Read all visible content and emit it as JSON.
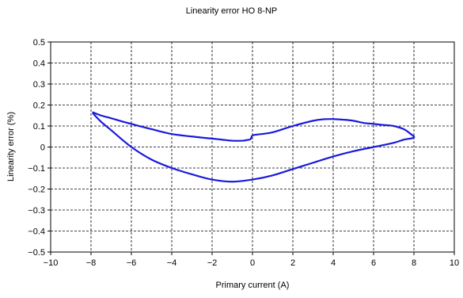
{
  "chart_data": {
    "type": "line",
    "title": "Linearity error HO 8-NP",
    "xlabel": "Primary current (A)",
    "ylabel": "Linearity error (%)",
    "xlim": [
      -10,
      10
    ],
    "ylim": [
      -0.5,
      0.5
    ],
    "xticks": [
      -10,
      -8,
      -6,
      -4,
      -2,
      0,
      2,
      4,
      6,
      8,
      10
    ],
    "yticks": [
      -0.5,
      -0.4,
      -0.3,
      -0.2,
      -0.1,
      0,
      0.1,
      0.2,
      0.3,
      0.4,
      0.5
    ],
    "xtick_labels": [
      "−10",
      "−8",
      "−6",
      "−4",
      "−2",
      "0",
      "2",
      "4",
      "6",
      "8",
      "10"
    ],
    "ytick_labels": [
      "−0.5",
      "−0.4",
      "−0.3",
      "−0.2",
      "−0.1",
      "0",
      "0.1",
      "0.2",
      "0.3",
      "0.4",
      "0.5"
    ],
    "grid": true,
    "grid_style": "dashed",
    "series": [
      {
        "color": "#1a1adc",
        "x": [
          -7.9,
          -7.5,
          -7.0,
          -6.5,
          -6.0,
          -5.0,
          -4.0,
          -3.0,
          -2.0,
          -1.5,
          -1.0,
          -0.5,
          -0.3,
          -0.1,
          0.0,
          0.3,
          1.0,
          2.0,
          3.0,
          3.5,
          4.0,
          4.5,
          5.0,
          5.5,
          6.0,
          6.5,
          7.0,
          7.5,
          7.8,
          8.0,
          7.5,
          7.0,
          6.0,
          5.0,
          4.0,
          3.0,
          2.0,
          1.0,
          0.0,
          -1.0,
          -2.0,
          -3.0,
          -4.0,
          -5.0,
          -6.0,
          -7.0,
          -7.5,
          -7.9
        ],
        "y": [
          0.165,
          0.15,
          0.137,
          0.123,
          0.11,
          0.085,
          0.062,
          0.05,
          0.04,
          0.035,
          0.03,
          0.03,
          0.033,
          0.037,
          0.055,
          0.06,
          0.07,
          0.1,
          0.125,
          0.132,
          0.133,
          0.13,
          0.125,
          0.115,
          0.11,
          0.105,
          0.1,
          0.085,
          0.065,
          0.045,
          0.035,
          0.02,
          0.0,
          -0.02,
          -0.045,
          -0.075,
          -0.105,
          -0.135,
          -0.155,
          -0.165,
          -0.155,
          -0.13,
          -0.1,
          -0.06,
          0.0,
          0.08,
          0.12,
          0.16
        ]
      }
    ]
  }
}
